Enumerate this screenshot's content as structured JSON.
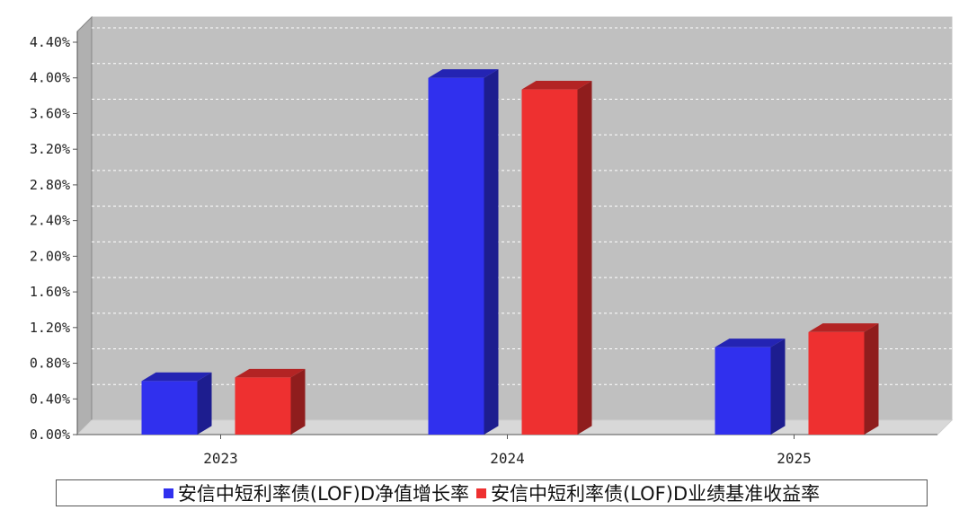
{
  "chart_data": {
    "type": "bar",
    "categories": [
      "2023",
      "2024",
      "2025"
    ],
    "series": [
      {
        "name": "安信中短利率债(LOF)D净值增长率",
        "values": [
          0.6,
          4.0,
          0.98
        ],
        "color": "#3030ee"
      },
      {
        "name": "安信中短利率债(LOF)D业绩基准收益率",
        "values": [
          0.64,
          3.87,
          1.15
        ],
        "color": "#ee3030"
      }
    ],
    "y_ticks": [
      "0.00%",
      "0.40%",
      "0.80%",
      "1.20%",
      "1.60%",
      "2.00%",
      "2.40%",
      "2.80%",
      "3.20%",
      "3.60%",
      "4.00%",
      "4.40%"
    ],
    "ylim": [
      0,
      4.4
    ],
    "grid": true,
    "legend_position": "bottom",
    "title": "",
    "xlabel": "",
    "ylabel": ""
  }
}
